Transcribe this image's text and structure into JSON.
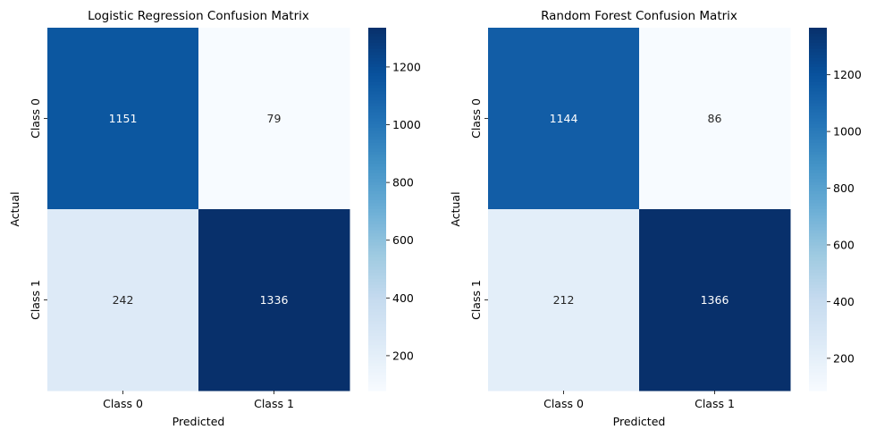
{
  "chart_data": [
    {
      "type": "heatmap",
      "title": "Logistic Regression Confusion Matrix",
      "xlabel": "Predicted",
      "ylabel": "Actual",
      "x_categories": [
        "Class 0",
        "Class 1"
      ],
      "y_categories": [
        "Class 0",
        "Class 1"
      ],
      "values": [
        [
          1151,
          79
        ],
        [
          242,
          1336
        ]
      ],
      "colormap": "Blues",
      "colorbar": {
        "min": 79,
        "max": 1336,
        "ticks": [
          200,
          400,
          600,
          800,
          1000,
          1200
        ]
      },
      "grid": false
    },
    {
      "type": "heatmap",
      "title": "Random Forest Confusion Matrix",
      "xlabel": "Predicted",
      "ylabel": "Actual",
      "x_categories": [
        "Class 0",
        "Class 1"
      ],
      "y_categories": [
        "Class 0",
        "Class 1"
      ],
      "values": [
        [
          1144,
          86
        ],
        [
          212,
          1366
        ]
      ],
      "colormap": "Blues",
      "colorbar": {
        "min": 86,
        "max": 1366,
        "ticks": [
          200,
          400,
          600,
          800,
          1000,
          1200
        ]
      },
      "grid": false
    }
  ]
}
